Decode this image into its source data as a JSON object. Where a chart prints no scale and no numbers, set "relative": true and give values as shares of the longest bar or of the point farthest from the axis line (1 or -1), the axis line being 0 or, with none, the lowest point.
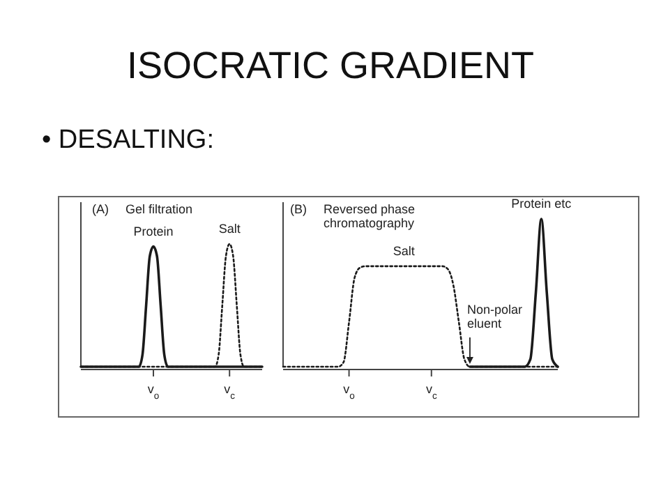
{
  "chart_data": [
    {
      "type": "other",
      "title": "ISOCRATIC GRADIENT",
      "annotations": [
        "• DESALTING:"
      ]
    },
    {
      "type": "line",
      "title": "Gel filtration",
      "annotations": [
        "(A)"
      ],
      "relative": true,
      "legend": false,
      "categories": [
        null,
        null,
        null,
        null,
        null,
        null,
        null,
        null,
        null,
        null,
        null,
        null,
        null,
        null,
        null,
        null,
        null,
        null,
        null,
        null,
        "v$_{o}$",
        null,
        null,
        null,
        null,
        null,
        null,
        null,
        null,
        null,
        null,
        null,
        null,
        null,
        null,
        null,
        null,
        null,
        null,
        null,
        null,
        "v$_{c}$",
        null,
        null,
        null,
        null,
        null,
        null,
        null,
        null,
        null
      ],
      "series": [
        {
          "name": "Protein",
          "color": "#1a1a1a",
          "line_style": "solid",
          "values": [
            0,
            0,
            0,
            0,
            0,
            0,
            0,
            0,
            0,
            0,
            0,
            0,
            0,
            0,
            0,
            0,
            0,
            0.1,
            0.5,
            0.9,
            0.98,
            0.9,
            0.5,
            0.1,
            0,
            0,
            0,
            0,
            0,
            0,
            0,
            0,
            0,
            0,
            0,
            0,
            0,
            0,
            0,
            0,
            0,
            0,
            0,
            0,
            0,
            0,
            0,
            0,
            0,
            0,
            0
          ]
        },
        {
          "name": "Salt",
          "color": "#1a1a1a",
          "line_style": "dotted",
          "values": [
            0,
            0,
            0,
            0,
            0,
            0,
            0,
            0,
            0,
            0,
            0,
            0,
            0,
            0,
            0,
            0,
            0,
            0,
            0,
            0,
            0,
            0,
            0,
            0,
            0,
            0,
            0,
            0,
            0,
            0,
            0,
            0,
            0,
            0,
            0,
            0,
            0,
            0,
            0.1,
            0.5,
            0.9,
            1,
            0.9,
            0.5,
            0.1,
            0,
            0,
            0,
            0,
            0,
            0
          ]
        }
      ]
    },
    {
      "type": "line",
      "title": "Reversed phase chromatography",
      "annotations": [
        "(B)",
        "Non-polar eluent"
      ],
      "relative": true,
      "legend": false,
      "categories": [
        null,
        null,
        null,
        null,
        null,
        null,
        null,
        null,
        null,
        null,
        null,
        null,
        "v$_{o}$",
        null,
        null,
        null,
        null,
        null,
        null,
        null,
        null,
        null,
        null,
        null,
        null,
        null,
        null,
        "v$_{c}$",
        null,
        null,
        null,
        null,
        null,
        null,
        null,
        null,
        null,
        null,
        null,
        null,
        null,
        null,
        null,
        null,
        null,
        null,
        null,
        null,
        null,
        null,
        null
      ],
      "series": [
        {
          "name": "Salt",
          "color": "#1a1a1a",
          "line_style": "dotted",
          "values": [
            0,
            0,
            0,
            0,
            0,
            0,
            0,
            0,
            0,
            0,
            0,
            0.03,
            0.3,
            0.6,
            0.67,
            0.68,
            0.68,
            0.68,
            0.68,
            0.68,
            0.68,
            0.68,
            0.68,
            0.68,
            0.68,
            0.68,
            0.68,
            0.68,
            0.68,
            0.68,
            0.66,
            0.55,
            0.3,
            0.05,
            0,
            0,
            0,
            0,
            0,
            0,
            0,
            0,
            0,
            0,
            0,
            0,
            0,
            0,
            0,
            0,
            0
          ]
        },
        {
          "name": "Protein etc",
          "color": "#1a1a1a",
          "line_style": "solid",
          "values": [
            null,
            null,
            null,
            null,
            null,
            null,
            null,
            null,
            null,
            null,
            null,
            null,
            null,
            null,
            null,
            null,
            null,
            null,
            null,
            null,
            null,
            null,
            null,
            null,
            null,
            null,
            null,
            null,
            null,
            null,
            null,
            null,
            null,
            null,
            0,
            0,
            0,
            0,
            0,
            0,
            0,
            0,
            0,
            0,
            0,
            0.05,
            0.5,
            1,
            0.5,
            0.05,
            0
          ]
        }
      ]
    }
  ]
}
